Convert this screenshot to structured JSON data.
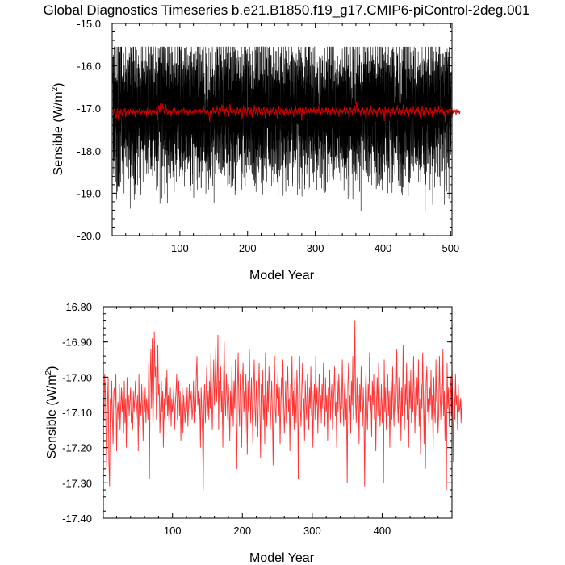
{
  "title": "Global Diagnostics Timeseries b.e21.B1850.f19_g17.CMIP6-piControl-2deg.001",
  "colors": {
    "monthly": "#000000",
    "annual": "#cc0000",
    "annual_panel2": "#ff3333",
    "background": "#ffffff"
  },
  "chart_data": [
    {
      "type": "line",
      "panel": "top",
      "xlabel": "Model Year",
      "ylabel": "Sensible (W/m²)",
      "ylabel_base": "Sensible (W/m",
      "ylabel_sup": "2",
      "ylabel_close": ")",
      "xlim": [
        0,
        502
      ],
      "ylim": [
        -20.0,
        -15.0
      ],
      "xticks": [
        100,
        200,
        300,
        400,
        500
      ],
      "xtick_labels": [
        "100",
        "200",
        "300",
        "400",
        "500"
      ],
      "yticks": [
        -20.0,
        -19.0,
        -18.0,
        -17.0,
        -16.0,
        -15.0
      ],
      "ytick_labels": [
        "-20.0",
        "-19.0",
        "-18.0",
        "-17.0",
        "-16.0",
        "-15.0"
      ],
      "grid": false,
      "series_note_monthly": {
        "mean": -17.05,
        "amplitude_range": [
          -19.45,
          -15.55
        ],
        "samples": 6000
      },
      "series_annual_ref": "chart_data.1.values"
    },
    {
      "type": "line",
      "panel": "bottom",
      "xlabel": "Model Year",
      "ylabel": "Sensible (W/m²)",
      "ylabel_base": "Sensible (W/m",
      "ylabel_sup": "2",
      "ylabel_close": ")",
      "xlim": [
        1,
        500
      ],
      "ylim": [
        -17.4,
        -16.8
      ],
      "xticks": [
        100,
        200,
        300,
        400
      ],
      "xtick_labels": [
        "100",
        "200",
        "300",
        "400"
      ],
      "yticks": [
        -17.4,
        -17.3,
        -17.2,
        -17.1,
        -17.0,
        -16.9,
        -16.8
      ],
      "ytick_labels": [
        "-17.40",
        "-17.30",
        "-17.20",
        "-17.10",
        "-17.00",
        "-16.90",
        "-16.80"
      ],
      "grid": false,
      "x_start": 1,
      "values": [
        -17.09,
        -17.12,
        -16.99,
        -17.05,
        -17.17,
        -17.26,
        -17.08,
        -17.0,
        -17.24,
        -17.31,
        -17.06,
        -17.14,
        -17.01,
        -17.11,
        -17.19,
        -17.04,
        -17.03,
        -17.09,
        -16.99,
        -17.21,
        -17.1,
        -17.07,
        -17.12,
        -17.02,
        -17.15,
        -17.08,
        -17.03,
        -17.1,
        -17.04,
        -17.16,
        -17.01,
        -17.13,
        -17.06,
        -17.2,
        -17.0,
        -17.09,
        -17.05,
        -17.11,
        -17.07,
        -17.03,
        -17.13,
        -17.09,
        -17.15,
        -17.04,
        -17.1,
        -17.06,
        -17.01,
        -17.12,
        -17.08,
        -17.05,
        -17.21,
        -16.99,
        -17.14,
        -17.07,
        -17.11,
        -17.02,
        -17.09,
        -17.18,
        -17.04,
        -17.1,
        -17.03,
        -17.13,
        -17.06,
        -17.09,
        -17.12,
        -16.96,
        -17.29,
        -17.02,
        -16.92,
        -17.09,
        -16.89,
        -17.15,
        -17.04,
        -16.87,
        -17.0,
        -16.97,
        -17.12,
        -17.07,
        -16.91,
        -17.05,
        -17.02,
        -17.16,
        -17.08,
        -17.01,
        -17.1,
        -17.04,
        -17.2,
        -17.06,
        -17.12,
        -17.0,
        -17.08,
        -16.98,
        -17.11,
        -17.05,
        -17.13,
        -17.09,
        -17.03,
        -17.14,
        -17.06,
        -17.1,
        -17.07,
        -17.02,
        -17.15,
        -17.08,
        -17.04,
        -16.99,
        -17.12,
        -17.06,
        -17.01,
        -17.11,
        -17.04,
        -17.18,
        -17.08,
        -17.03,
        -17.16,
        -17.05,
        -17.09,
        -17.13,
        -17.07,
        -17.1,
        -17.03,
        -17.14,
        -17.08,
        -17.02,
        -17.11,
        -17.06,
        -17.04,
        -17.12,
        -17.09,
        -17.01,
        -17.13,
        -17.05,
        -17.1,
        -17.0,
        -16.94,
        -17.08,
        -17.04,
        -17.12,
        -17.06,
        -17.2,
        -17.03,
        -17.1,
        -17.16,
        -17.32,
        -17.07,
        -17.02,
        -17.13,
        -17.05,
        -16.97,
        -17.11,
        -17.04,
        -17.12,
        -17.01,
        -17.09,
        -16.93,
        -17.06,
        -17.15,
        -17.04,
        -16.95,
        -17.08,
        -17.01,
        -16.91,
        -17.07,
        -17.03,
        -16.88,
        -17.15,
        -17.01,
        -17.07,
        -16.97,
        -17.1,
        -17.04,
        -17.2,
        -17.02,
        -16.9,
        -17.06,
        -17.11,
        -16.99,
        -17.05,
        -17.12,
        -17.02,
        -17.08,
        -17.18,
        -17.04,
        -17.11,
        -16.97,
        -17.06,
        -17.14,
        -17.01,
        -17.09,
        -16.95,
        -17.12,
        -17.26,
        -17.03,
        -16.93,
        -17.08,
        -17.14,
        -16.99,
        -17.05,
        -17.2,
        -17.02,
        -16.96,
        -17.1,
        -17.04,
        -17.16,
        -16.99,
        -17.07,
        -17.22,
        -17.01,
        -17.1,
        -16.92,
        -17.04,
        -17.13,
        -17.0,
        -17.09,
        -17.19,
        -17.03,
        -16.95,
        -17.08,
        -17.14,
        -17.01,
        -17.07,
        -17.17,
        -17.04,
        -16.96,
        -17.09,
        -17.23,
        -17.02,
        -17.08,
        -16.98,
        -17.12,
        -17.05,
        -17.19,
        -16.93,
        -17.06,
        -17.14,
        -17.01,
        -17.1,
        -16.97,
        -17.03,
        -17.15,
        -17.08,
        -17.01,
        -17.11,
        -17.25,
        -17.04,
        -16.94,
        -17.09,
        -17.13,
        -17.02,
        -17.06,
        -16.98,
        -17.11,
        -17.03,
        -17.19,
        -17.07,
        -17.0,
        -17.12,
        -16.95,
        -17.05,
        -17.16,
        -17.09,
        -17.01,
        -17.13,
        -17.04,
        -16.97,
        -17.1,
        -17.06,
        -17.21,
        -17.02,
        -17.08,
        -16.94,
        -17.11,
        -17.04,
        -17.15,
        -17.0,
        -17.07,
        -17.13,
        -16.98,
        -17.05,
        -17.29,
        -17.02,
        -16.94,
        -17.09,
        -17.14,
        -17.03,
        -16.96,
        -17.1,
        -17.06,
        -17.18,
        -17.01,
        -17.08,
        -17.12,
        -16.99,
        -17.05,
        -17.15,
        -17.03,
        -17.09,
        -16.97,
        -17.11,
        -17.04,
        -17.2,
        -17.07,
        -17.02,
        -17.12,
        -16.94,
        -17.08,
        -17.03,
        -17.16,
        -17.06,
        -16.99,
        -17.11,
        -17.05,
        -17.13,
        -17.02,
        -17.09,
        -16.96,
        -17.07,
        -17.14,
        -17.0,
        -17.1,
        -17.05,
        -17.18,
        -17.03,
        -17.08,
        -16.98,
        -17.12,
        -17.06,
        -17.02,
        -17.15,
        -17.09,
        -17.04,
        -16.97,
        -17.11,
        -17.07,
        -17.2,
        -17.01,
        -17.1,
        -16.99,
        -17.06,
        -17.13,
        -17.03,
        -17.09,
        -16.95,
        -17.08,
        -17.14,
        -17.04,
        -17.0,
        -17.12,
        -17.06,
        -17.3,
        -17.02,
        -16.96,
        -17.1,
        -17.05,
        -17.16,
        -17.01,
        -17.08,
        -16.94,
        -17.12,
        -17.04,
        -16.84,
        -17.07,
        -17.13,
        -17.0,
        -17.09,
        -17.05,
        -17.19,
        -17.02,
        -17.1,
        -16.97,
        -17.06,
        -17.14,
        -17.03,
        -17.11,
        -17.31,
        -17.04,
        -16.98,
        -17.09,
        -17.15,
        -17.02,
        -17.07,
        -16.93,
        -17.1,
        -17.05,
        -17.17,
        -17.01,
        -17.08,
        -16.99,
        -17.12,
        -17.04,
        -17.21,
        -17.07,
        -17.0,
        -17.11,
        -16.96,
        -17.05,
        -17.14,
        -17.09,
        -17.02,
        -17.13,
        -17.06,
        -17.3,
        -16.95,
        -17.1,
        -17.03,
        -17.15,
        -17.08,
        -16.99,
        -17.11,
        -17.04,
        -17.2,
        -17.06,
        -17.01,
        -17.12,
        -16.97,
        -17.08,
        -17.14,
        -17.02,
        -17.1,
        -17.05,
        -16.92,
        -17.07,
        -17.13,
        -17.0,
        -17.09,
        -17.04,
        -17.18,
        -17.03,
        -17.11,
        -16.91,
        -17.06,
        -17.15,
        -17.02,
        -17.08,
        -16.96,
        -17.12,
        -17.05,
        -17.2,
        -17.01,
        -17.09,
        -16.98,
        -17.13,
        -17.04,
        -17.1,
        -16.94,
        -17.07,
        -17.16,
        -17.03,
        -17.11,
        -17.0,
        -17.08,
        -16.95,
        -17.14,
        -17.06,
        -17.22,
        -17.02,
        -17.09,
        -16.93,
        -17.05,
        -17.19,
        -17.04,
        -17.26,
        -17.01,
        -16.97,
        -17.1,
        -17.06,
        -17.15,
        -17.03,
        -17.08,
        -16.98,
        -17.12,
        -17.05,
        -17.21,
        -17.0,
        -17.09,
        -17.13,
        -16.95,
        -17.07,
        -17.03,
        -17.16,
        -17.1,
        -16.94,
        -17.05,
        -17.12,
        -17.02,
        -17.08,
        -16.92,
        -17.11,
        -17.04,
        -17.18,
        -17.07,
        -17.32,
        -16.96,
        -17.09,
        -17.03,
        -17.14,
        -17.06,
        -17.0,
        -17.11,
        -16.97,
        -17.07,
        -17.24,
        -17.04,
        -17.12,
        -16.99,
        -17.08,
        -17.05,
        -17.15,
        -17.02,
        -17.1,
        -17.09,
        -17.06,
        -17.13,
        -17.06
      ]
    }
  ]
}
